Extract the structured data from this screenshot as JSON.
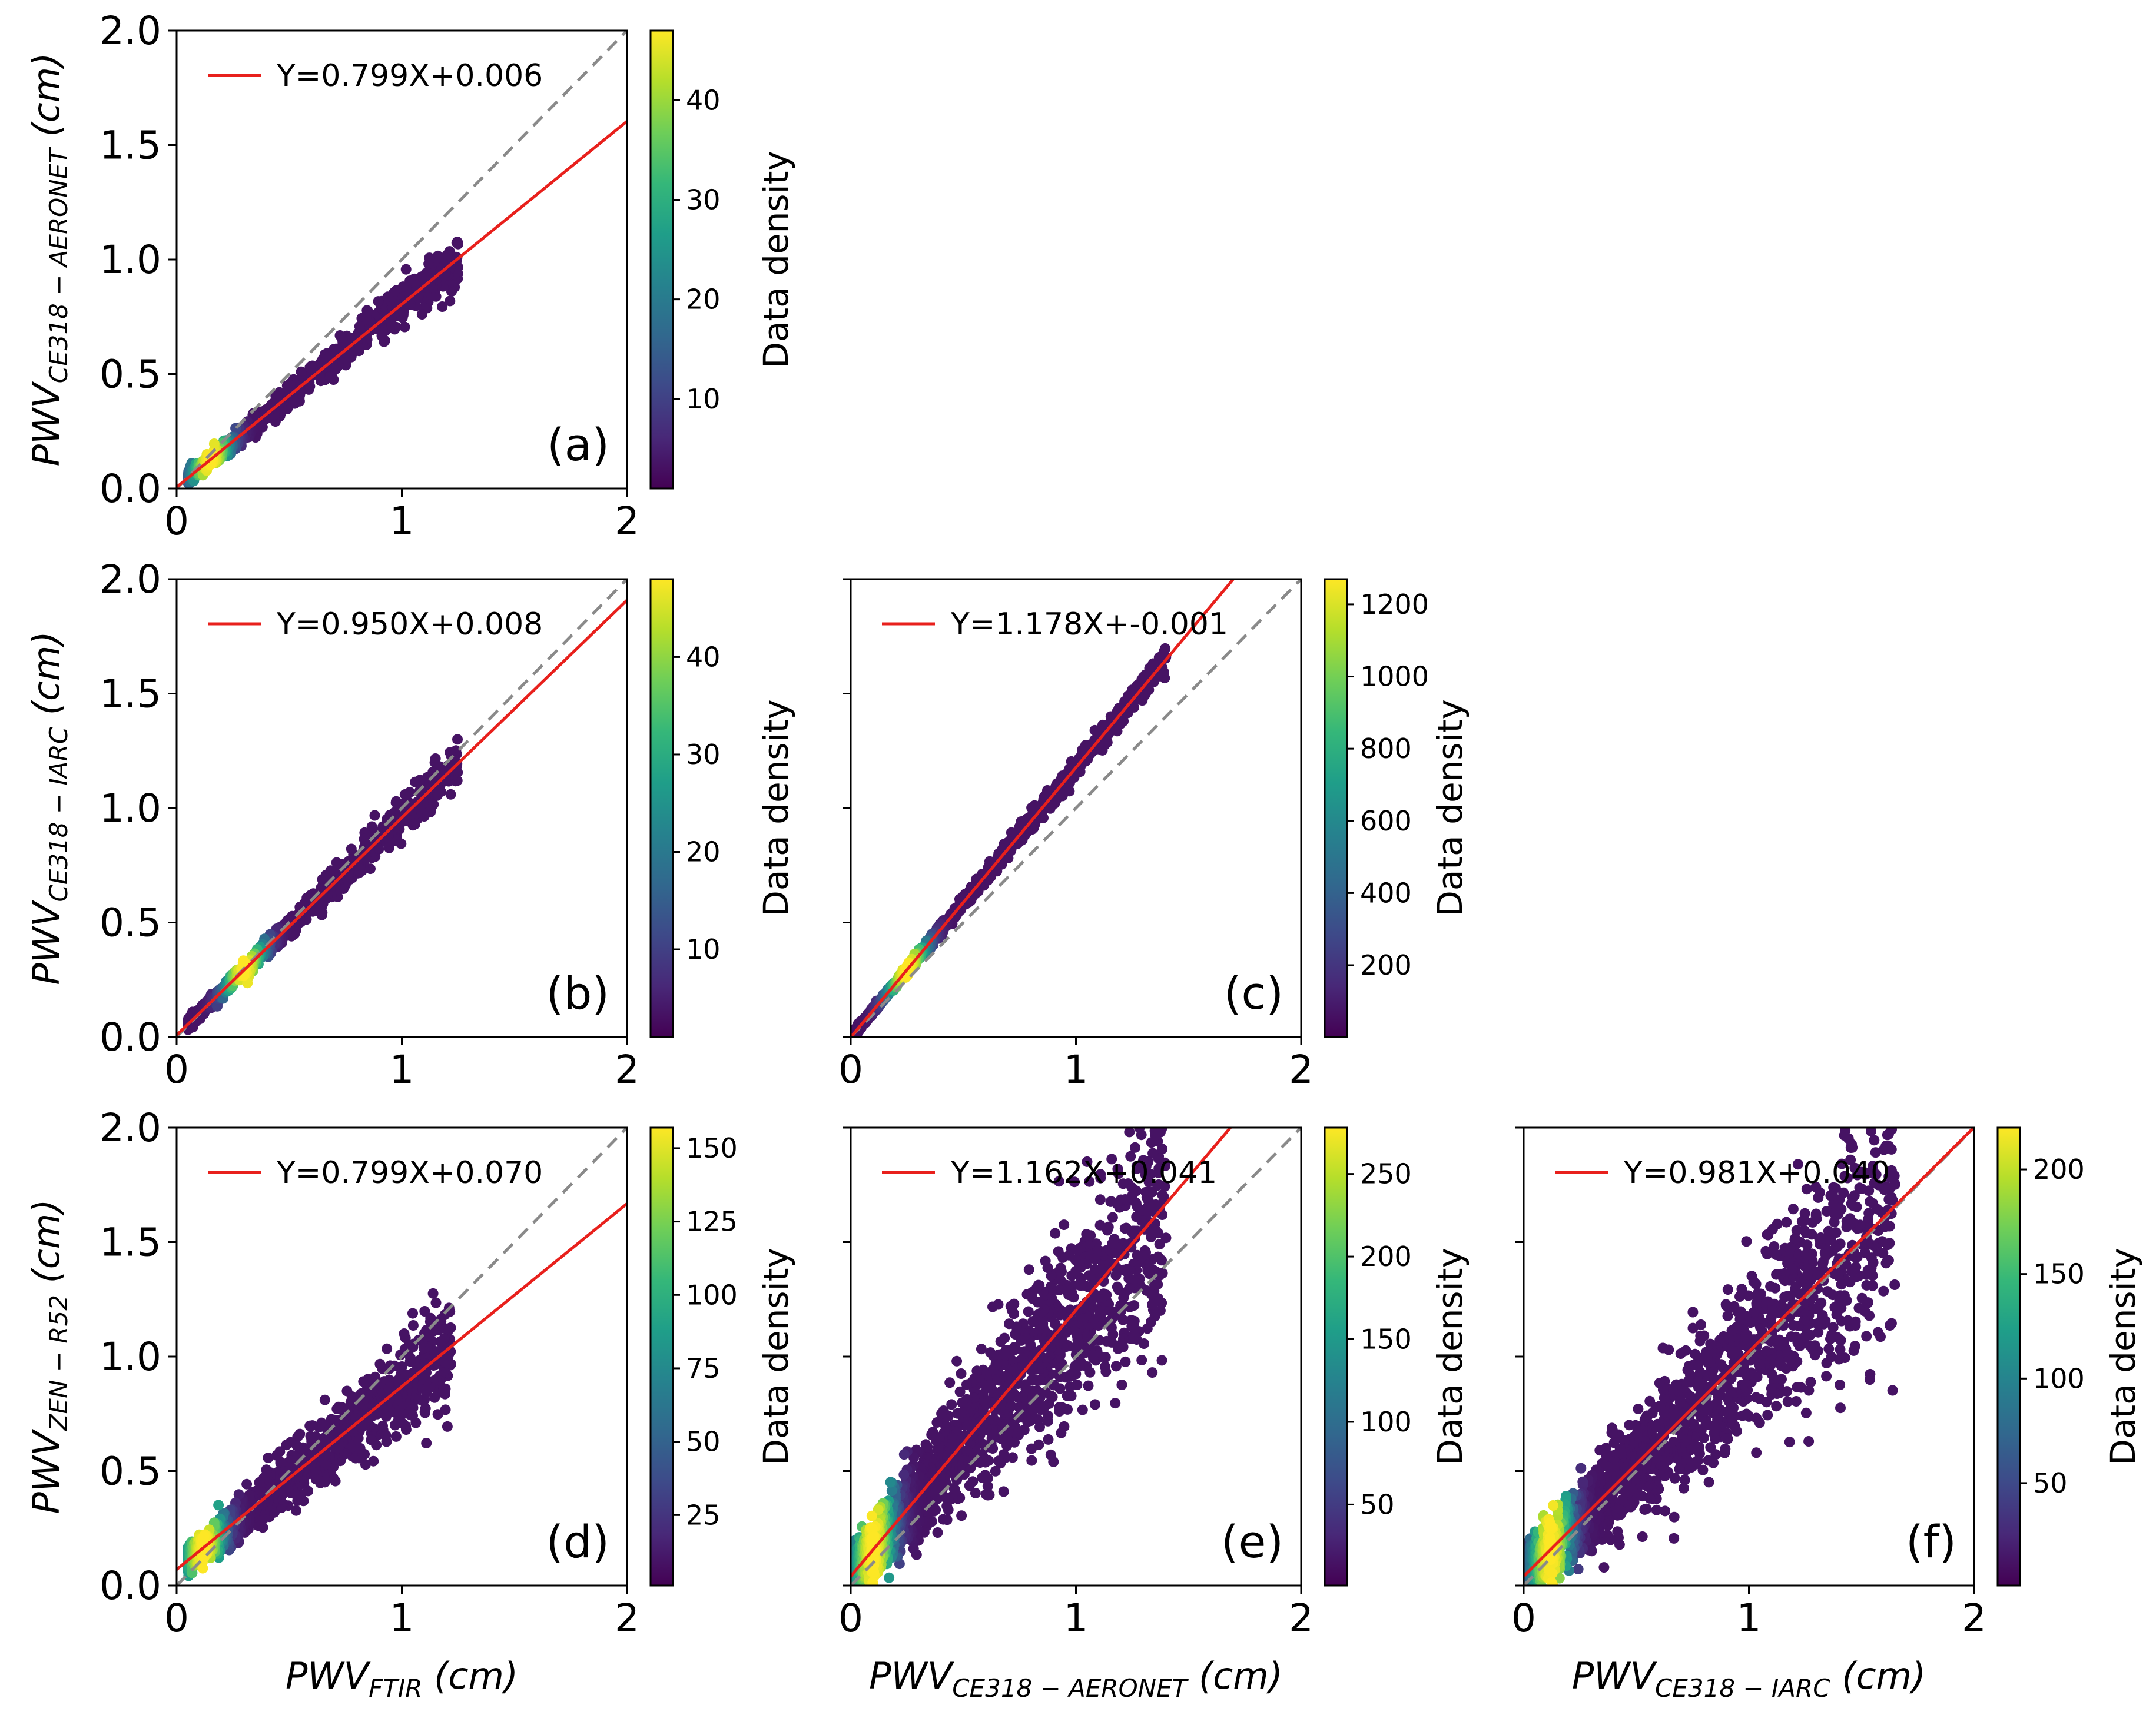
{
  "figure": {
    "colormap": [
      "#440154",
      "#482878",
      "#3e4989",
      "#31688e",
      "#26828e",
      "#1f9e89",
      "#35b779",
      "#6ece58",
      "#b5de2b",
      "#fde725"
    ],
    "line_color": "#e8201c",
    "diag_color": "#8a8a8a"
  },
  "chart_data": [
    {
      "id": "a",
      "type": "scatter",
      "panel_label": "(a)",
      "legend": "Y=0.799X+0.006",
      "fit": {
        "slope": 0.799,
        "intercept": 0.006
      },
      "xlim": [
        0,
        2
      ],
      "ylim": [
        0,
        2
      ],
      "x_ticks": [
        "0",
        "1",
        "2"
      ],
      "y_ticks": [
        "0.0",
        "0.5",
        "1.0",
        "1.5",
        "2.0"
      ],
      "ylabel": {
        "main": "PWV",
        "sub": "CE318 − AERONET",
        "unit": " (cm)"
      },
      "xlabel": null,
      "colorbar": {
        "label": "Data density",
        "min": 1,
        "max": 47,
        "ticks": [
          "10",
          "20",
          "30",
          "40"
        ],
        "tick_values": [
          10,
          20,
          30,
          40
        ]
      },
      "sample": {
        "x_range": [
          0.05,
          1.25
        ],
        "noise": 0.03,
        "density_peak": 0.15,
        "count": 900,
        "seed": 11
      }
    },
    {
      "id": "b",
      "type": "scatter",
      "panel_label": "(b)",
      "legend": "Y=0.950X+0.008",
      "fit": {
        "slope": 0.95,
        "intercept": 0.008
      },
      "xlim": [
        0,
        2
      ],
      "ylim": [
        0,
        2
      ],
      "x_ticks": [
        "0",
        "1",
        "2"
      ],
      "y_ticks": [
        "0.0",
        "0.5",
        "1.0",
        "1.5",
        "2.0"
      ],
      "ylabel": {
        "main": "PWV",
        "sub": "CE318 − IARC",
        "unit": " (cm)"
      },
      "xlabel": null,
      "colorbar": {
        "label": "Data density",
        "min": 1,
        "max": 48,
        "ticks": [
          "10",
          "20",
          "30",
          "40"
        ],
        "tick_values": [
          10,
          20,
          30,
          40
        ]
      },
      "sample": {
        "x_range": [
          0.05,
          1.25
        ],
        "noise": 0.025,
        "density_peak": 0.3,
        "count": 900,
        "seed": 23
      }
    },
    {
      "id": "c",
      "type": "scatter",
      "panel_label": "(c)",
      "legend": "Y=1.178X+-0.001",
      "fit": {
        "slope": 1.178,
        "intercept": -0.001
      },
      "xlim": [
        0,
        2
      ],
      "ylim": [
        0,
        2
      ],
      "x_ticks": [
        "0",
        "1",
        "2"
      ],
      "y_ticks": [],
      "ylabel": null,
      "xlabel": null,
      "colorbar": {
        "label": "Data density",
        "min": 1,
        "max": 1270,
        "ticks": [
          "200",
          "400",
          "600",
          "800",
          "1000",
          "1200"
        ],
        "tick_values": [
          200,
          400,
          600,
          800,
          1000,
          1200
        ]
      },
      "sample": {
        "x_range": [
          0.02,
          1.4
        ],
        "noise": 0.015,
        "density_peak": 0.25,
        "count": 1100,
        "seed": 37
      }
    },
    {
      "id": "d",
      "type": "scatter",
      "panel_label": "(d)",
      "legend": "Y=0.799X+0.070",
      "fit": {
        "slope": 0.799,
        "intercept": 0.07
      },
      "xlim": [
        0,
        2
      ],
      "ylim": [
        0,
        2
      ],
      "x_ticks": [
        "0",
        "1",
        "2"
      ],
      "y_ticks": [
        "0.0",
        "0.5",
        "1.0",
        "1.5",
        "2.0"
      ],
      "ylabel": {
        "main": "PWV",
        "sub": "ZEN − R52",
        "unit": " (cm)"
      },
      "xlabel": {
        "main": "PWV",
        "sub": "FTIR",
        "unit": " (cm)"
      },
      "colorbar": {
        "label": "Data density",
        "min": 1,
        "max": 157,
        "ticks": [
          "25",
          "50",
          "75",
          "100",
          "125",
          "150"
        ],
        "tick_values": [
          25,
          50,
          75,
          100,
          125,
          150
        ]
      },
      "sample": {
        "x_range": [
          0.05,
          1.22
        ],
        "noise": 0.06,
        "density_peak": 0.12,
        "count": 1200,
        "seed": 41
      }
    },
    {
      "id": "e",
      "type": "scatter",
      "panel_label": "(e)",
      "legend": "Y=1.162X+0.041",
      "fit": {
        "slope": 1.162,
        "intercept": 0.041
      },
      "xlim": [
        0,
        2
      ],
      "ylim": [
        0,
        2
      ],
      "x_ticks": [
        "0",
        "1",
        "2"
      ],
      "y_ticks": [],
      "ylabel": null,
      "xlabel": {
        "main": "PWV",
        "sub": "CE318 − AERONET",
        "unit": " (cm)"
      },
      "colorbar": {
        "label": "Data density",
        "min": 1,
        "max": 278,
        "ticks": [
          "50",
          "100",
          "150",
          "200",
          "250"
        ],
        "tick_values": [
          50,
          100,
          150,
          200,
          250
        ]
      },
      "sample": {
        "x_range": [
          0.01,
          1.4
        ],
        "noise": 0.13,
        "density_peak": 0.1,
        "count": 1700,
        "seed": 53
      }
    },
    {
      "id": "f",
      "type": "scatter",
      "panel_label": "(f)",
      "legend": "Y=0.981X+0.040",
      "fit": {
        "slope": 0.981,
        "intercept": 0.04
      },
      "xlim": [
        0,
        2
      ],
      "ylim": [
        0,
        2
      ],
      "x_ticks": [
        "0",
        "1",
        "2"
      ],
      "y_ticks": [],
      "ylabel": null,
      "xlabel": {
        "main": "PWV",
        "sub": "CE318 − IARC",
        "unit": " (cm)"
      },
      "colorbar": {
        "label": "Data density",
        "min": 1,
        "max": 220,
        "ticks": [
          "50",
          "100",
          "150",
          "200"
        ],
        "tick_values": [
          50,
          100,
          150,
          200
        ]
      },
      "sample": {
        "x_range": [
          0.01,
          1.65
        ],
        "noise": 0.12,
        "density_peak": 0.12,
        "count": 1700,
        "seed": 67
      }
    }
  ]
}
